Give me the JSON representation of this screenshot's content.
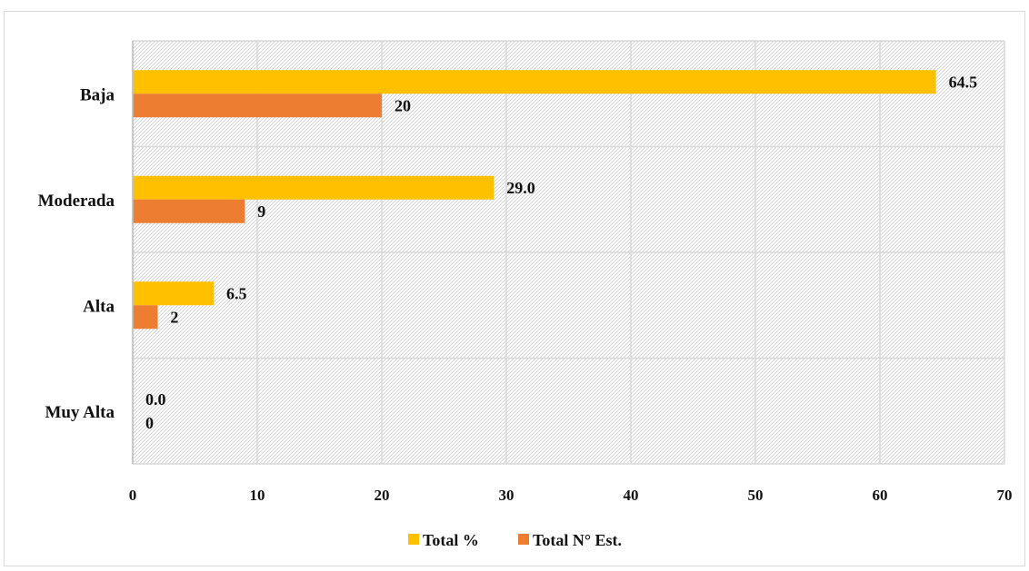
{
  "chart_data": {
    "type": "bar",
    "orientation": "horizontal",
    "categories": [
      "Baja",
      "Moderada",
      "Alta",
      "Muy Alta"
    ],
    "series": [
      {
        "name": "Total %",
        "values": [
          64.5,
          29.0,
          6.5,
          0.0
        ],
        "labels": [
          "64.5",
          "29.0",
          "6.5",
          "0.0"
        ],
        "color": "#FFC000"
      },
      {
        "name": "Total N° Est.",
        "values": [
          20,
          9,
          2,
          0
        ],
        "labels": [
          "20",
          "9",
          "2",
          "0"
        ],
        "color": "#ED7D31"
      }
    ],
    "xlim": [
      0,
      70
    ],
    "xticks": [
      "0",
      "10",
      "20",
      "30",
      "40",
      "50",
      "60",
      "70"
    ],
    "grid": true,
    "plot_background": "hatched",
    "legend_position": "bottom"
  }
}
